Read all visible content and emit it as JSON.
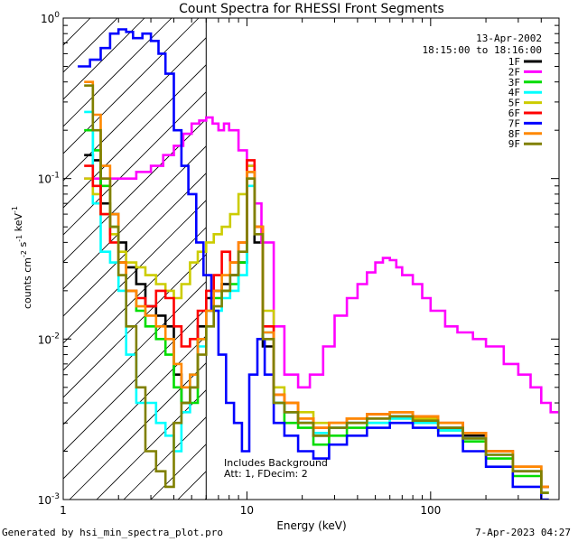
{
  "chart_data": {
    "type": "line",
    "title": "Count Spectra for RHESSI Front Segments",
    "xlabel": "Energy (keV)",
    "ylabel": "counts cm^-2 s^-1 keV^-1",
    "xscale": "log",
    "yscale": "log",
    "xlim": [
      1,
      500
    ],
    "ylim": [
      0.001,
      1
    ],
    "x_ticks": [
      {
        "value": 1,
        "label": "1"
      },
      {
        "value": 10,
        "label": "10"
      },
      {
        "value": 100,
        "label": "100"
      }
    ],
    "y_ticks": [
      {
        "value": 1,
        "label": "10^0"
      },
      {
        "value": 0.1,
        "label": "10^-1"
      },
      {
        "value": 0.01,
        "label": "10^-2"
      },
      {
        "value": 0.001,
        "label": "10^-3"
      }
    ],
    "hatched_region": {
      "x_min": 1,
      "x_max": 6
    },
    "date": "13-Apr-2002",
    "time_range": "18:15:00 to 18:16:00",
    "annotations": [
      "Includes Background",
      "Att: 1, FDecim: 2"
    ],
    "legend_position": "top-right",
    "series": [
      {
        "name": "1F",
        "color": "#000000",
        "x": [
          1.3,
          1.45,
          1.6,
          1.8,
          2.0,
          2.2,
          2.5,
          2.8,
          3.2,
          3.6,
          4.0,
          4.4,
          4.9,
          5.4,
          6.0,
          6.6,
          7.3,
          8.1,
          9.0,
          10.0,
          11.0,
          12.2,
          14.0,
          16.0,
          19.0,
          23.0,
          28.0,
          35.0,
          45.0,
          60.0,
          80.0,
          110.0,
          150.0,
          200.0,
          280.0,
          400.0
        ],
        "values": [
          0.14,
          0.13,
          0.07,
          0.06,
          0.04,
          0.028,
          0.022,
          0.016,
          0.014,
          0.012,
          0.006,
          0.004,
          0.005,
          0.012,
          0.018,
          0.02,
          0.022,
          0.025,
          0.03,
          0.11,
          0.04,
          0.009,
          0.004,
          0.0035,
          0.003,
          0.0025,
          0.0028,
          0.003,
          0.0032,
          0.0033,
          0.003,
          0.0028,
          0.0025,
          0.002,
          0.0015,
          0.0012
        ]
      },
      {
        "name": "2F",
        "color": "#ff00ff",
        "x": [
          1.3,
          1.5,
          1.8,
          2.1,
          2.5,
          3.0,
          3.5,
          4.0,
          4.5,
          5.0,
          5.5,
          6.0,
          6.5,
          7.0,
          7.5,
          8.0,
          9.0,
          10.0,
          11.0,
          12.0,
          14.0,
          16.0,
          19.0,
          22.0,
          26.0,
          30.0,
          35.0,
          40.0,
          45.0,
          50.0,
          55.0,
          60.0,
          65.0,
          70.0,
          80.0,
          90.0,
          100.0,
          120.0,
          140.0,
          170.0,
          200.0,
          250.0,
          300.0,
          350.0,
          400.0,
          450.0
        ],
        "values": [
          0.1,
          0.1,
          0.1,
          0.1,
          0.11,
          0.12,
          0.14,
          0.16,
          0.19,
          0.22,
          0.23,
          0.24,
          0.22,
          0.2,
          0.22,
          0.2,
          0.15,
          0.12,
          0.07,
          0.04,
          0.012,
          0.006,
          0.005,
          0.006,
          0.009,
          0.014,
          0.018,
          0.022,
          0.026,
          0.03,
          0.032,
          0.031,
          0.028,
          0.025,
          0.022,
          0.018,
          0.015,
          0.012,
          0.011,
          0.01,
          0.009,
          0.007,
          0.006,
          0.005,
          0.004,
          0.0035
        ]
      },
      {
        "name": "3F",
        "color": "#00dd00",
        "x": [
          1.3,
          1.45,
          1.6,
          1.8,
          2.0,
          2.2,
          2.5,
          2.8,
          3.2,
          3.6,
          4.0,
          4.4,
          4.9,
          5.4,
          6.0,
          6.6,
          7.3,
          8.1,
          9.0,
          10.0,
          11.0,
          12.2,
          14.0,
          16.0,
          19.0,
          23.0,
          28.0,
          35.0,
          45.0,
          60.0,
          80.0,
          110.0,
          150.0,
          200.0,
          280.0,
          400.0
        ],
        "values": [
          0.2,
          0.15,
          0.09,
          0.05,
          0.03,
          0.02,
          0.015,
          0.012,
          0.01,
          0.008,
          0.005,
          0.004,
          0.004,
          0.01,
          0.015,
          0.018,
          0.02,
          0.022,
          0.03,
          0.1,
          0.05,
          0.01,
          0.004,
          0.003,
          0.0028,
          0.0022,
          0.0025,
          0.0028,
          0.003,
          0.0032,
          0.003,
          0.0027,
          0.0023,
          0.0018,
          0.0014,
          0.0011
        ]
      },
      {
        "name": "4F",
        "color": "#00ffff",
        "x": [
          1.3,
          1.45,
          1.6,
          1.8,
          2.0,
          2.2,
          2.5,
          2.8,
          3.2,
          3.6,
          4.0,
          4.4,
          4.9,
          5.4,
          6.0,
          6.6,
          7.3,
          8.1,
          9.0,
          10.0,
          11.0,
          12.2,
          14.0,
          16.0,
          19.0,
          23.0,
          28.0,
          35.0,
          45.0,
          60.0,
          80.0,
          110.0,
          150.0,
          200.0,
          280.0,
          400.0
        ],
        "values": [
          0.26,
          0.07,
          0.035,
          0.03,
          0.02,
          0.008,
          0.004,
          0.004,
          0.003,
          0.0025,
          0.002,
          0.0035,
          0.006,
          0.009,
          0.012,
          0.015,
          0.018,
          0.02,
          0.025,
          0.09,
          0.05,
          0.011,
          0.004,
          0.0035,
          0.003,
          0.0026,
          0.0028,
          0.003,
          0.003,
          0.0032,
          0.003,
          0.0027,
          0.0024,
          0.0019,
          0.0015,
          0.0012
        ]
      },
      {
        "name": "5F",
        "color": "#cccc00",
        "x": [
          1.3,
          1.45,
          1.6,
          1.8,
          2.0,
          2.2,
          2.5,
          2.8,
          3.2,
          3.6,
          4.0,
          4.4,
          4.9,
          5.4,
          6.0,
          6.6,
          7.3,
          8.1,
          9.0,
          10.0,
          11.0,
          12.2,
          14.0,
          16.0,
          19.0,
          23.0,
          28.0,
          35.0,
          45.0,
          60.0,
          80.0,
          110.0,
          150.0,
          200.0,
          280.0,
          400.0
        ],
        "values": [
          0.1,
          0.08,
          0.06,
          0.045,
          0.035,
          0.03,
          0.028,
          0.025,
          0.022,
          0.02,
          0.018,
          0.022,
          0.03,
          0.035,
          0.04,
          0.045,
          0.05,
          0.06,
          0.08,
          0.12,
          0.05,
          0.015,
          0.005,
          0.004,
          0.0035,
          0.003,
          0.003,
          0.0032,
          0.0034,
          0.0035,
          0.0032,
          0.003,
          0.0026,
          0.002,
          0.0016,
          0.0012
        ]
      },
      {
        "name": "6F",
        "color": "#ff0000",
        "x": [
          1.3,
          1.45,
          1.6,
          1.8,
          2.0,
          2.2,
          2.5,
          2.8,
          3.2,
          3.6,
          4.0,
          4.4,
          4.9,
          5.4,
          6.0,
          6.6,
          7.3,
          8.1,
          9.0,
          10.0,
          11.0,
          12.2,
          14.0,
          16.0,
          19.0,
          23.0,
          28.0,
          35.0,
          45.0,
          60.0,
          80.0,
          110.0,
          150.0,
          200.0,
          280.0,
          400.0
        ],
        "values": [
          0.12,
          0.09,
          0.06,
          0.04,
          0.03,
          0.02,
          0.018,
          0.016,
          0.02,
          0.018,
          0.012,
          0.009,
          0.01,
          0.015,
          0.02,
          0.025,
          0.035,
          0.03,
          0.04,
          0.13,
          0.05,
          0.012,
          0.0045,
          0.004,
          0.0032,
          0.0028,
          0.003,
          0.0032,
          0.0034,
          0.0035,
          0.0033,
          0.003,
          0.0026,
          0.002,
          0.0016,
          0.0012
        ]
      },
      {
        "name": "7F",
        "color": "#0000ff",
        "x": [
          1.2,
          1.4,
          1.6,
          1.8,
          2.0,
          2.2,
          2.4,
          2.7,
          3.0,
          3.3,
          3.6,
          4.0,
          4.4,
          4.8,
          5.3,
          5.8,
          6.4,
          7.0,
          7.7,
          8.5,
          9.4,
          10.3,
          11.4,
          12.5,
          14.0,
          16.0,
          19.0,
          23.0,
          28.0,
          35.0,
          45.0,
          60.0,
          80.0,
          110.0,
          150.0,
          200.0,
          280.0,
          400.0
        ],
        "values": [
          0.5,
          0.55,
          0.65,
          0.8,
          0.85,
          0.82,
          0.75,
          0.8,
          0.72,
          0.6,
          0.45,
          0.2,
          0.12,
          0.08,
          0.04,
          0.025,
          0.015,
          0.008,
          0.004,
          0.003,
          0.002,
          0.006,
          0.01,
          0.006,
          0.003,
          0.0025,
          0.002,
          0.0018,
          0.0022,
          0.0025,
          0.0028,
          0.003,
          0.0028,
          0.0025,
          0.002,
          0.0016,
          0.0012,
          0.001
        ]
      },
      {
        "name": "8F",
        "color": "#ff8800",
        "x": [
          1.3,
          1.45,
          1.6,
          1.8,
          2.0,
          2.2,
          2.5,
          2.8,
          3.2,
          3.6,
          4.0,
          4.4,
          4.9,
          5.4,
          6.0,
          6.6,
          7.3,
          8.1,
          9.0,
          10.0,
          11.0,
          12.2,
          14.0,
          16.0,
          19.0,
          23.0,
          28.0,
          35.0,
          45.0,
          60.0,
          80.0,
          110.0,
          150.0,
          200.0,
          280.0,
          400.0
        ],
        "values": [
          0.4,
          0.25,
          0.12,
          0.06,
          0.03,
          0.02,
          0.016,
          0.014,
          0.012,
          0.01,
          0.007,
          0.005,
          0.006,
          0.01,
          0.015,
          0.02,
          0.025,
          0.03,
          0.04,
          0.11,
          0.05,
          0.011,
          0.0045,
          0.004,
          0.0032,
          0.0028,
          0.003,
          0.0032,
          0.0034,
          0.0035,
          0.0033,
          0.003,
          0.0026,
          0.002,
          0.0016,
          0.0012
        ]
      },
      {
        "name": "9F",
        "color": "#808000",
        "x": [
          1.3,
          1.45,
          1.6,
          1.8,
          2.0,
          2.2,
          2.5,
          2.8,
          3.2,
          3.6,
          4.0,
          4.4,
          4.9,
          5.4,
          6.0,
          6.6,
          7.3,
          8.1,
          9.0,
          10.0,
          11.0,
          12.2,
          14.0,
          16.0,
          19.0,
          23.0,
          28.0,
          35.0,
          45.0,
          60.0,
          80.0,
          110.0,
          150.0,
          200.0,
          280.0,
          400.0
        ],
        "values": [
          0.38,
          0.2,
          0.1,
          0.05,
          0.025,
          0.012,
          0.005,
          0.002,
          0.0015,
          0.0012,
          0.003,
          0.004,
          0.005,
          0.008,
          0.012,
          0.016,
          0.02,
          0.025,
          0.035,
          0.1,
          0.045,
          0.01,
          0.004,
          0.0035,
          0.003,
          0.0025,
          0.0028,
          0.003,
          0.0032,
          0.0033,
          0.0031,
          0.0028,
          0.0024,
          0.0019,
          0.0015,
          0.0011
        ]
      }
    ]
  },
  "footer": {
    "generated_by": "Generated by hsi_min_spectra_plot.pro",
    "timestamp": "7-Apr-2023 04:27"
  }
}
